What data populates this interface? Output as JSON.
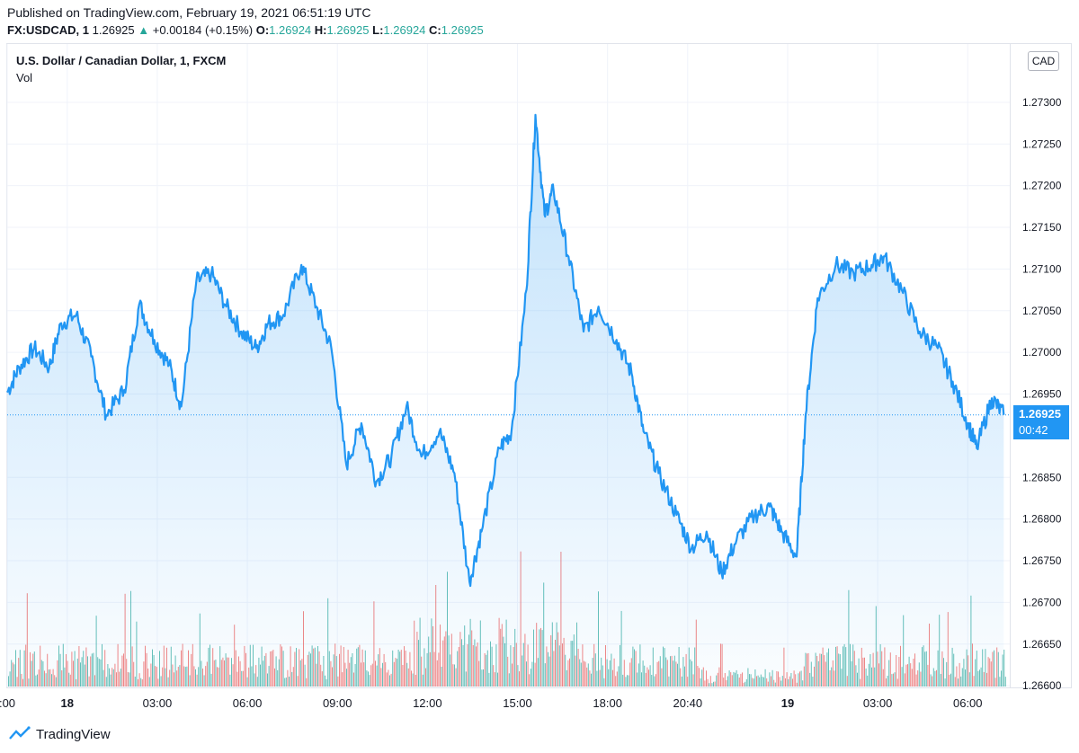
{
  "header": {
    "published": "Published on TradingView.com, February 19, 2021 06:51:19 UTC",
    "symbol": "FX:USDCAD, 1",
    "last": "1.26925",
    "change": "+0.00184 (+0.15%)",
    "o_label": "O:",
    "o_value": "1.26924",
    "h_label": "H:",
    "h_value": "1.26925",
    "l_label": "L:",
    "l_value": "1.26924",
    "c_label": "C:",
    "c_value": "1.26925"
  },
  "legend": {
    "title": "U.S. Dollar / Canadian Dollar, 1, FXCM",
    "volume": "Vol"
  },
  "currency_badge": "CAD",
  "price_badge": {
    "price": "1.26925",
    "countdown": "00:42"
  },
  "footer": {
    "brand": "TradingView"
  },
  "colors": {
    "line": "#2196f3",
    "vol_up": "#26a69a",
    "vol_down": "#ef5350",
    "grid": "#f0f3fa"
  },
  "chart_data": {
    "type": "area",
    "title": "U.S. Dollar / Canadian Dollar, 1, FXCM",
    "ylabel": "CAD",
    "ylim": [
      1.26598,
      1.2737
    ],
    "y_ticks": [
      1.273,
      1.2725,
      1.272,
      1.2715,
      1.271,
      1.2705,
      1.27,
      1.2695,
      1.2685,
      1.268,
      1.2675,
      1.267,
      1.2665,
      1.266
    ],
    "y_tick_labels": [
      "1.27300",
      "1.27250",
      "1.27200",
      "1.27150",
      "1.27100",
      "1.27050",
      "1.27000",
      "1.26950",
      "1.26850",
      "1.26800",
      "1.26750",
      "1.26700",
      "1.26650",
      "1.26600"
    ],
    "x_ticks": [
      ":00",
      "18",
      "03:00",
      "06:00",
      "09:00",
      "12:00",
      "15:00",
      "18:00",
      "20:40",
      "19",
      "03:00",
      "06:00"
    ],
    "x_tick_bold": [
      false,
      true,
      false,
      false,
      false,
      false,
      false,
      false,
      false,
      true,
      false,
      false
    ],
    "x_hours": [
      22,
      24,
      27,
      30,
      33,
      36,
      39,
      42,
      44.67,
      48,
      51,
      54
    ],
    "xlim": [
      22,
      55.4
    ],
    "last_price": 1.26925,
    "series": [
      {
        "name": "USDCAD",
        "x": [
          22,
          22.4,
          22.9,
          23.4,
          23.8,
          24.3,
          24.8,
          25.3,
          25.9,
          26.4,
          26.9,
          27.4,
          27.8,
          28.3,
          28.8,
          29.3,
          29.8,
          30.3,
          30.7,
          31.2,
          31.8,
          32.3,
          32.8,
          33.3,
          33.8,
          34.3,
          34.8,
          35.3,
          35.8,
          36.4,
          36.9,
          37.4,
          37.8,
          38.4,
          38.8,
          39.3,
          39.6,
          39.9,
          40.2,
          40.7,
          41.2,
          41.7,
          42.3,
          42.8,
          43.2,
          43.7,
          44.3,
          44.8,
          45.3,
          45.8,
          46.3,
          46.9,
          47.4,
          47.8,
          48.3,
          48.6,
          49,
          49.6,
          50.2,
          50.8,
          51.2,
          51.8,
          52.4,
          53,
          53.5,
          54,
          54.3,
          54.8,
          55.2
        ],
        "y": [
          1.26952,
          1.26982,
          1.27005,
          1.26982,
          1.27035,
          1.27045,
          1.26995,
          1.26925,
          1.26955,
          1.27058,
          1.27015,
          1.26985,
          1.26935,
          1.27085,
          1.27095,
          1.27055,
          1.27025,
          1.27005,
          1.27035,
          1.27045,
          1.27105,
          1.27055,
          1.27005,
          1.26865,
          1.26915,
          1.26845,
          1.26875,
          1.26935,
          1.26875,
          1.26905,
          1.26855,
          1.26725,
          1.26785,
          1.26885,
          1.26905,
          1.27075,
          1.27285,
          1.27165,
          1.27195,
          1.27115,
          1.27025,
          1.27055,
          1.27015,
          1.26975,
          1.26905,
          1.26855,
          1.26805,
          1.26765,
          1.26785,
          1.26735,
          1.26775,
          1.26805,
          1.26815,
          1.26785,
          1.26755,
          1.26925,
          1.27065,
          1.27105,
          1.27095,
          1.27105,
          1.27115,
          1.27075,
          1.27025,
          1.27005,
          1.26965,
          1.26915,
          1.26885,
          1.26945,
          1.26925
        ]
      }
    ],
    "volume": {
      "min_value": 0,
      "max_value": 1,
      "note": "Volume histogram (green = up, red = down bars)"
    }
  }
}
